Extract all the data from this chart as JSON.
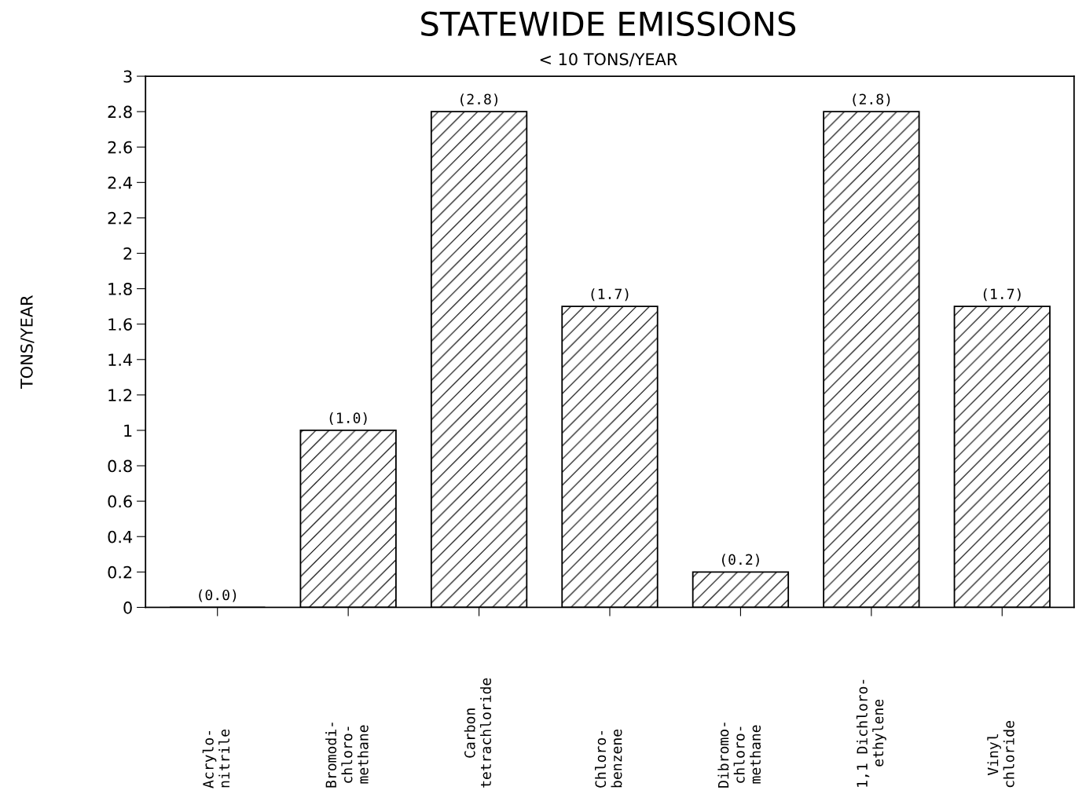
{
  "chart_data": {
    "type": "bar",
    "title": "STATEWIDE EMISSIONS",
    "subtitle": "< 10 TONS/YEAR",
    "ylabel": "TONS/YEAR",
    "categories": [
      "Acrylo-\nnitrile",
      "Bromodi-\nchloro-\nmethane",
      "Carbon\ntetrachloride",
      "Chloro-\nbenzene",
      "Dibromo-\nchloro-\nmethane",
      "1,1 Dichloro-\nethylene",
      "Vinyl\nchloride"
    ],
    "values": [
      0.0,
      1.0,
      2.8,
      1.7,
      0.2,
      2.8,
      1.7
    ],
    "value_labels": [
      "(0.0)",
      "(1.0)",
      "(2.8)",
      "(1.7)",
      "(0.2)",
      "(2.8)",
      "(1.7)"
    ],
    "color": "#000000",
    "ylim": [
      0,
      3
    ],
    "yticks": [
      0,
      0.2,
      0.4,
      0.6,
      0.8,
      1,
      1.2,
      1.4,
      1.6,
      1.8,
      2,
      2.2,
      2.4,
      2.6,
      2.8,
      3
    ],
    "grid": false
  }
}
